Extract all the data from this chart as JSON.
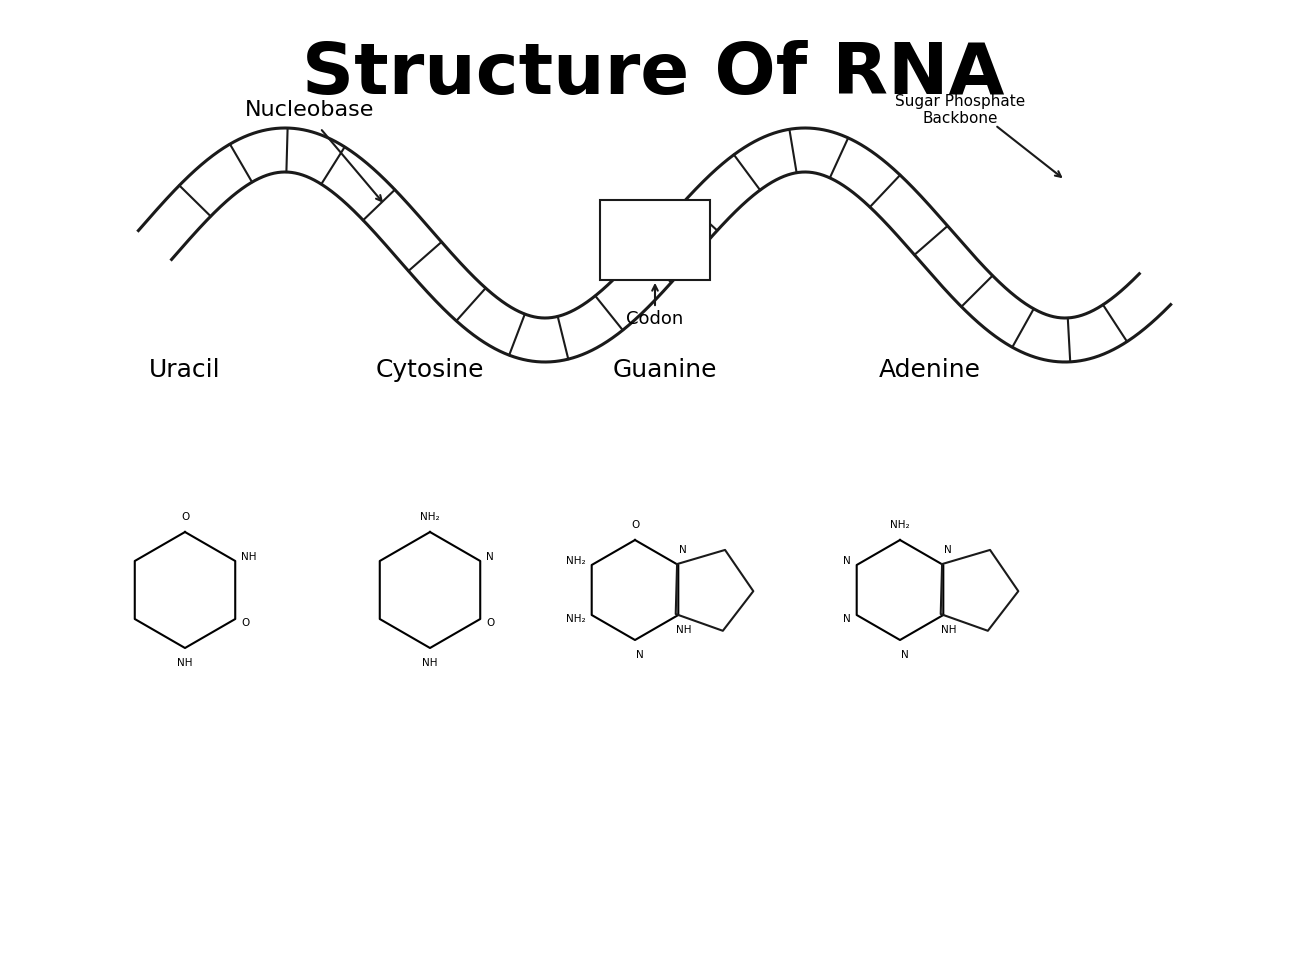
{
  "title": "Structure Of RNA",
  "title_fontsize": 52,
  "title_fontweight": "bold",
  "bg_color": "#ffffff",
  "line_color": "#1a1a1a",
  "label_nucleobase": "Nucleobase",
  "label_sugar": "Sugar Phosphate\nBackbone",
  "label_codon": "Codon",
  "nucleobase_names": [
    "Uracil",
    "Cytosine",
    "Guanine",
    "Adenine"
  ],
  "nucleobase_name_fontsize": 18,
  "molecule_label_fontsize": 7
}
